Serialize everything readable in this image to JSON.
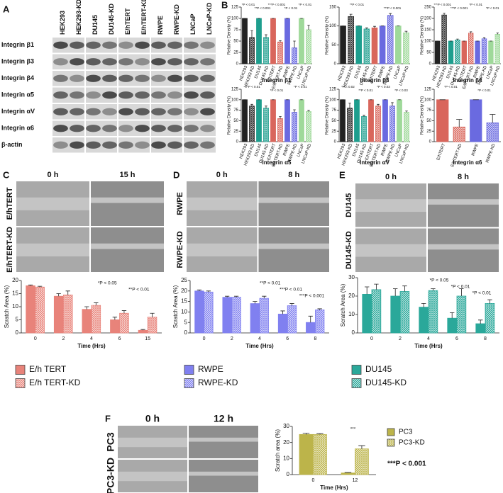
{
  "letters": [
    "A",
    "B",
    "C",
    "D",
    "E",
    "F"
  ],
  "blot": {
    "columns": [
      "HEK293",
      "HEK293-KD",
      "DU145",
      "DU145-KD",
      "E/hTERT",
      "E/hTERT-KD",
      "RWPE",
      "RWPE-KD",
      "LNCaP",
      "LNCaP-KD"
    ],
    "rows": [
      "Integrin β1",
      "Integrin β3",
      "Integrin β4",
      "Integrin α5",
      "Integrin αV",
      "Integrin α6",
      "β-actin"
    ]
  },
  "scratch": [
    {
      "times": [
        "0 h",
        "15 h"
      ],
      "rows": [
        "E/hTERT",
        "E/hTERT-KD"
      ]
    },
    {
      "times": [
        "0 h",
        "8 h"
      ],
      "rows": [
        "RWPE",
        "RWPE-KD"
      ]
    },
    {
      "times": [
        "0 h",
        "8 h"
      ],
      "rows": [
        "DU145",
        "DU145-KD"
      ]
    },
    {
      "times": [
        "0 h",
        "12 h"
      ],
      "rows": [
        "PC3",
        "PC3-KD"
      ]
    }
  ],
  "chart_data": [
    {
      "type": "bar",
      "title": "Integrin β1",
      "ylabel": "Relative Density (%)",
      "categories": [
        "HEK293",
        "HEK293-KD",
        "DU145",
        "DU145-KD",
        "E/hTERT",
        "E/hTERT-KD",
        "RWPE",
        "RWPE-KD",
        "LNCaP",
        "LNCaP-KD"
      ],
      "values": [
        100,
        58,
        100,
        58,
        100,
        48,
        100,
        35,
        100,
        75
      ],
      "errors": [
        0,
        15,
        0,
        6,
        0,
        3,
        0,
        15,
        0,
        10
      ],
      "colors": [
        "#222222",
        "#222222",
        "#1e9e8e",
        "#1e9e8e",
        "#d9665c",
        "#d9665c",
        "#6a6ae0",
        "#6a6ae0",
        "#9fd99a",
        "#9fd99a"
      ],
      "hatch": [
        false,
        true,
        false,
        true,
        false,
        true,
        false,
        true,
        false,
        true
      ],
      "ylim": [
        0,
        125
      ],
      "yticks": [
        0,
        25,
        50,
        75,
        100,
        125
      ],
      "annotations": [
        "*P < 0.01",
        "**P < 0.001",
        "***P < 0.001",
        "*P < 0.01",
        "*P < 0.01"
      ]
    },
    {
      "type": "bar",
      "title": "Integrin β3",
      "ylabel": "Relative Density (%)",
      "categories": [
        "HEK293",
        "HEK293-KD",
        "DU145",
        "DU145-KD",
        "E/hTERT",
        "RWPE",
        "RWPE-KD",
        "LNCaP",
        "LNCaP-KD"
      ],
      "values": [
        100,
        125,
        100,
        92,
        95,
        100,
        128,
        100,
        82
      ],
      "errors": [
        0,
        6,
        0,
        3,
        4,
        0,
        5,
        0,
        4
      ],
      "colors": [
        "#222222",
        "#222222",
        "#1e9e8e",
        "#1e9e8e",
        "#d9665c",
        "#6a6ae0",
        "#6a6ae0",
        "#9fd99a",
        "#9fd99a"
      ],
      "hatch": [
        false,
        true,
        false,
        true,
        false,
        false,
        true,
        false,
        true
      ],
      "ylim": [
        0,
        150
      ],
      "yticks": [
        0,
        50,
        100,
        150
      ],
      "annotations": [
        "**P < 0.01",
        "***P < 0.001"
      ]
    },
    {
      "type": "bar",
      "title": "Integrin β4",
      "ylabel": "Relative Density (%)",
      "categories": [
        "HEK293",
        "HEK293-KD",
        "DU145",
        "DU145-KD",
        "E/hTERT",
        "E/hTERT-KD",
        "RWPE",
        "RWPE-KD",
        "LNCaP",
        "LNCaP-KD"
      ],
      "values": [
        100,
        215,
        100,
        105,
        100,
        135,
        100,
        110,
        100,
        130
      ],
      "errors": [
        0,
        8,
        0,
        4,
        0,
        6,
        0,
        5,
        0,
        6
      ],
      "colors": [
        "#222222",
        "#222222",
        "#1e9e8e",
        "#1e9e8e",
        "#d9665c",
        "#d9665c",
        "#6a6ae0",
        "#6a6ae0",
        "#9fd99a",
        "#9fd99a"
      ],
      "hatch": [
        false,
        true,
        false,
        true,
        false,
        true,
        false,
        true,
        false,
        true
      ],
      "ylim": [
        0,
        250
      ],
      "yticks": [
        0,
        50,
        100,
        150,
        200,
        250
      ],
      "annotations": [
        "***P < 0.001",
        "***P < 0.001",
        "*P < 0.01",
        "*P < 0.01"
      ]
    },
    {
      "type": "bar",
      "title": "Integrin α5",
      "ylabel": "Relative Density (%)",
      "categories": [
        "HEK293",
        "HEK293-KD",
        "DU145",
        "DU145-KD",
        "E/hTERT",
        "E/hTERT-KD",
        "RWPE",
        "RWPE-KD",
        "LNCaP",
        "LNCaP-KD"
      ],
      "values": [
        100,
        85,
        100,
        80,
        100,
        55,
        100,
        70,
        100,
        72
      ],
      "errors": [
        0,
        4,
        0,
        5,
        0,
        5,
        0,
        6,
        0,
        3
      ],
      "colors": [
        "#222222",
        "#222222",
        "#1e9e8e",
        "#1e9e8e",
        "#d9665c",
        "#d9665c",
        "#6a6ae0",
        "#6a6ae0",
        "#9fd99a",
        "#9fd99a"
      ],
      "hatch": [
        false,
        true,
        false,
        true,
        false,
        true,
        false,
        true,
        false,
        true
      ],
      "ylim": [
        0,
        125
      ],
      "yticks": [
        0,
        25,
        50,
        75,
        100,
        125
      ],
      "annotations": [
        "**P < 0.01",
        "*P < 0.01",
        "*P < 0.01"
      ]
    },
    {
      "type": "bar",
      "title": "Integrin αV",
      "ylabel": "Relative Density (%)",
      "categories": [
        "HEK293",
        "HEK293-KD",
        "DU145",
        "DU145-KD",
        "E/hTERT",
        "E/hTERT-KD",
        "RWPE",
        "RWPE-KD",
        "LNCaP",
        "LNCaP-KD"
      ],
      "values": [
        100,
        80,
        100,
        60,
        100,
        85,
        100,
        85,
        100,
        70
      ],
      "errors": [
        0,
        12,
        0,
        3,
        0,
        4,
        0,
        8,
        0,
        3
      ],
      "colors": [
        "#222222",
        "#222222",
        "#1e9e8e",
        "#1e9e8e",
        "#d9665c",
        "#d9665c",
        "#6a6ae0",
        "#6a6ae0",
        "#9fd99a",
        "#9fd99a"
      ],
      "hatch": [
        false,
        true,
        false,
        true,
        false,
        true,
        false,
        true,
        false,
        true
      ],
      "ylim": [
        0,
        125
      ],
      "yticks": [
        0,
        25,
        50,
        75,
        100,
        125
      ],
      "annotations": [
        "*P < 0.02",
        "**P < 0.01",
        "*P < 0.03",
        "*P < 0.03"
      ]
    },
    {
      "type": "bar",
      "title": "Integrin α6",
      "ylabel": "Relative Density (%)",
      "categories": [
        "E/hTERT",
        "E/hTERT-KD",
        "RWPE",
        "RWPE-KD"
      ],
      "values": [
        100,
        35,
        100,
        45
      ],
      "errors": [
        0,
        18,
        0,
        20
      ],
      "colors": [
        "#d9665c",
        "#d9665c",
        "#6a6ae0",
        "#6a6ae0"
      ],
      "hatch": [
        false,
        true,
        false,
        true
      ],
      "ylim": [
        0,
        125
      ],
      "yticks": [
        0,
        25,
        50,
        75,
        100,
        125
      ],
      "annotations": [
        "*P < 0.01",
        "*P < 0.01"
      ]
    },
    {
      "type": "bar",
      "ylabel": "Scratch Area (%)",
      "xlabel": "Time (Hrs)",
      "legend": "below",
      "categories": [
        "0",
        "2",
        "4",
        "6",
        "15"
      ],
      "series": [
        {
          "name": "E/h TERT",
          "color": "#e8837a",
          "hatch": false,
          "values": [
            18,
            14,
            9,
            5,
            1
          ],
          "errors": [
            0.3,
            1,
            1,
            1,
            0.3
          ]
        },
        {
          "name": "E/h TERT-KD",
          "color": "#e8837a",
          "hatch": true,
          "values": [
            17.5,
            14.5,
            10.5,
            7.5,
            6
          ],
          "errors": [
            0.3,
            1.5,
            1,
            1,
            1.5
          ]
        }
      ],
      "ylim": [
        0,
        20
      ],
      "yticks": [
        0,
        5,
        10,
        15,
        20
      ],
      "annotations": [
        "*P < 0.05",
        "**P < 0.01"
      ]
    },
    {
      "type": "bar",
      "ylabel": "Scratch Area (%)",
      "xlabel": "Time (Hrs)",
      "legend": "below",
      "categories": [
        "0",
        "2",
        "4",
        "6",
        "8"
      ],
      "series": [
        {
          "name": "RWPE",
          "color": "#8080f0",
          "hatch": false,
          "values": [
            20,
            17,
            14,
            9,
            5
          ],
          "errors": [
            0.5,
            0.5,
            1,
            1.5,
            3
          ]
        },
        {
          "name": "RWPE-KD",
          "color": "#8080f0",
          "hatch": true,
          "values": [
            19.5,
            17,
            16.5,
            13,
            11
          ],
          "errors": [
            0.5,
            0.5,
            1,
            1,
            0.5
          ]
        }
      ],
      "ylim": [
        0,
        25
      ],
      "yticks": [
        0,
        5,
        10,
        15,
        20,
        25
      ],
      "annotations": [
        "**P < 0.01",
        "***P < 0.01",
        "***P < 0.001"
      ]
    },
    {
      "type": "bar",
      "ylabel": "Scratch Area (%)",
      "xlabel": "Time (Hrs)",
      "legend": "below",
      "categories": [
        "0",
        "2",
        "4",
        "6",
        "8"
      ],
      "series": [
        {
          "name": "DU145",
          "color": "#2aa89a",
          "hatch": false,
          "values": [
            21,
            20,
            14,
            8,
            5
          ],
          "errors": [
            4,
            4,
            2,
            3,
            2
          ]
        },
        {
          "name": "DU145-KD",
          "color": "#2aa89a",
          "hatch": true,
          "values": [
            23.5,
            22.5,
            23,
            20,
            16
          ],
          "errors": [
            3,
            3,
            1,
            4,
            2
          ]
        }
      ],
      "ylim": [
        0,
        30
      ],
      "yticks": [
        0,
        10,
        20,
        30
      ],
      "annotations": [
        "*P < 0.05",
        "*P < 0.01",
        "*P < 0.01"
      ]
    },
    {
      "type": "bar",
      "ylabel": "Scratch area (%)",
      "xlabel": "Time (Hrs)",
      "legend": "right",
      "categories": [
        "0",
        "12"
      ],
      "series": [
        {
          "name": "PC3",
          "color": "#bcb44a",
          "hatch": false,
          "values": [
            25,
            1
          ],
          "errors": [
            0.8,
            0.3
          ]
        },
        {
          "name": "PC3-KD",
          "color": "#bcb44a",
          "hatch": true,
          "values": [
            25,
            16
          ],
          "errors": [
            0.5,
            2
          ]
        }
      ],
      "ylim": [
        0,
        30
      ],
      "yticks": [
        0,
        10,
        20,
        30
      ],
      "annotations": [
        "***"
      ],
      "footnote": "***P < 0.001"
    }
  ]
}
